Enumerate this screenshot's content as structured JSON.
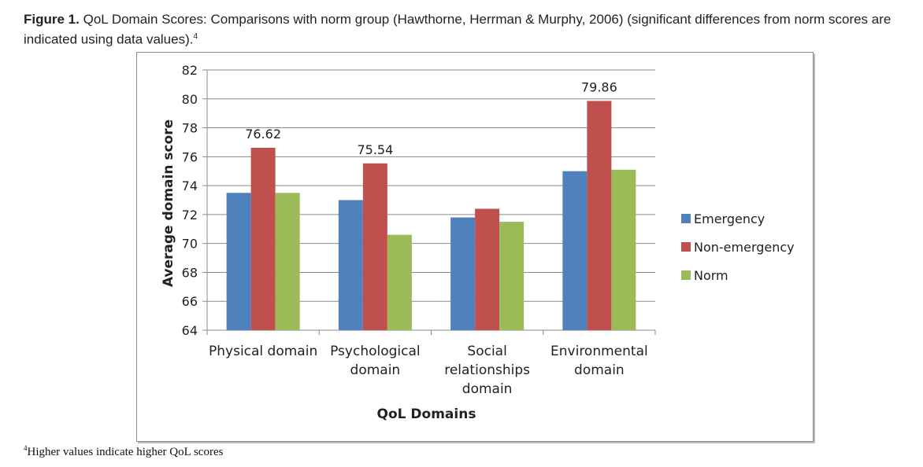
{
  "caption": {
    "label": "Figure 1.",
    "text": "QoL Domain Scores: Comparisons with norm group (Hawthorne, Herrman & Murphy, 2006) (significant differences from norm scores are indicated using data values).",
    "superscript": "4"
  },
  "footnote": {
    "superscript": "4",
    "text": "Higher values indicate higher QoL scores"
  },
  "chart_data": {
    "type": "bar",
    "title": "",
    "xlabel": "QoL Domains",
    "ylabel": "Average domain score",
    "ylim": [
      64,
      82
    ],
    "yticks": [
      64,
      66,
      68,
      70,
      72,
      74,
      76,
      78,
      80,
      82
    ],
    "grid": true,
    "legend_position": "right",
    "categories": [
      [
        "Physical domain"
      ],
      [
        "Psychological",
        "domain"
      ],
      [
        "Social",
        "relationships",
        "domain"
      ],
      [
        "Environmental",
        "domain"
      ]
    ],
    "series": [
      {
        "name": "Emergency",
        "color": "#4f81bd",
        "values": [
          73.5,
          73.0,
          71.8,
          75.0
        ]
      },
      {
        "name": "Non-emergency",
        "color": "#c0504d",
        "values": [
          76.62,
          75.54,
          72.4,
          79.86
        ]
      },
      {
        "name": "Norm",
        "color": "#9bbb59",
        "values": [
          73.5,
          70.6,
          71.5,
          75.1
        ]
      }
    ],
    "data_labels": [
      {
        "series": 1,
        "category": 0,
        "text": "76.62"
      },
      {
        "series": 1,
        "category": 1,
        "text": "75.54"
      },
      {
        "series": 1,
        "category": 3,
        "text": "79.86"
      }
    ]
  }
}
